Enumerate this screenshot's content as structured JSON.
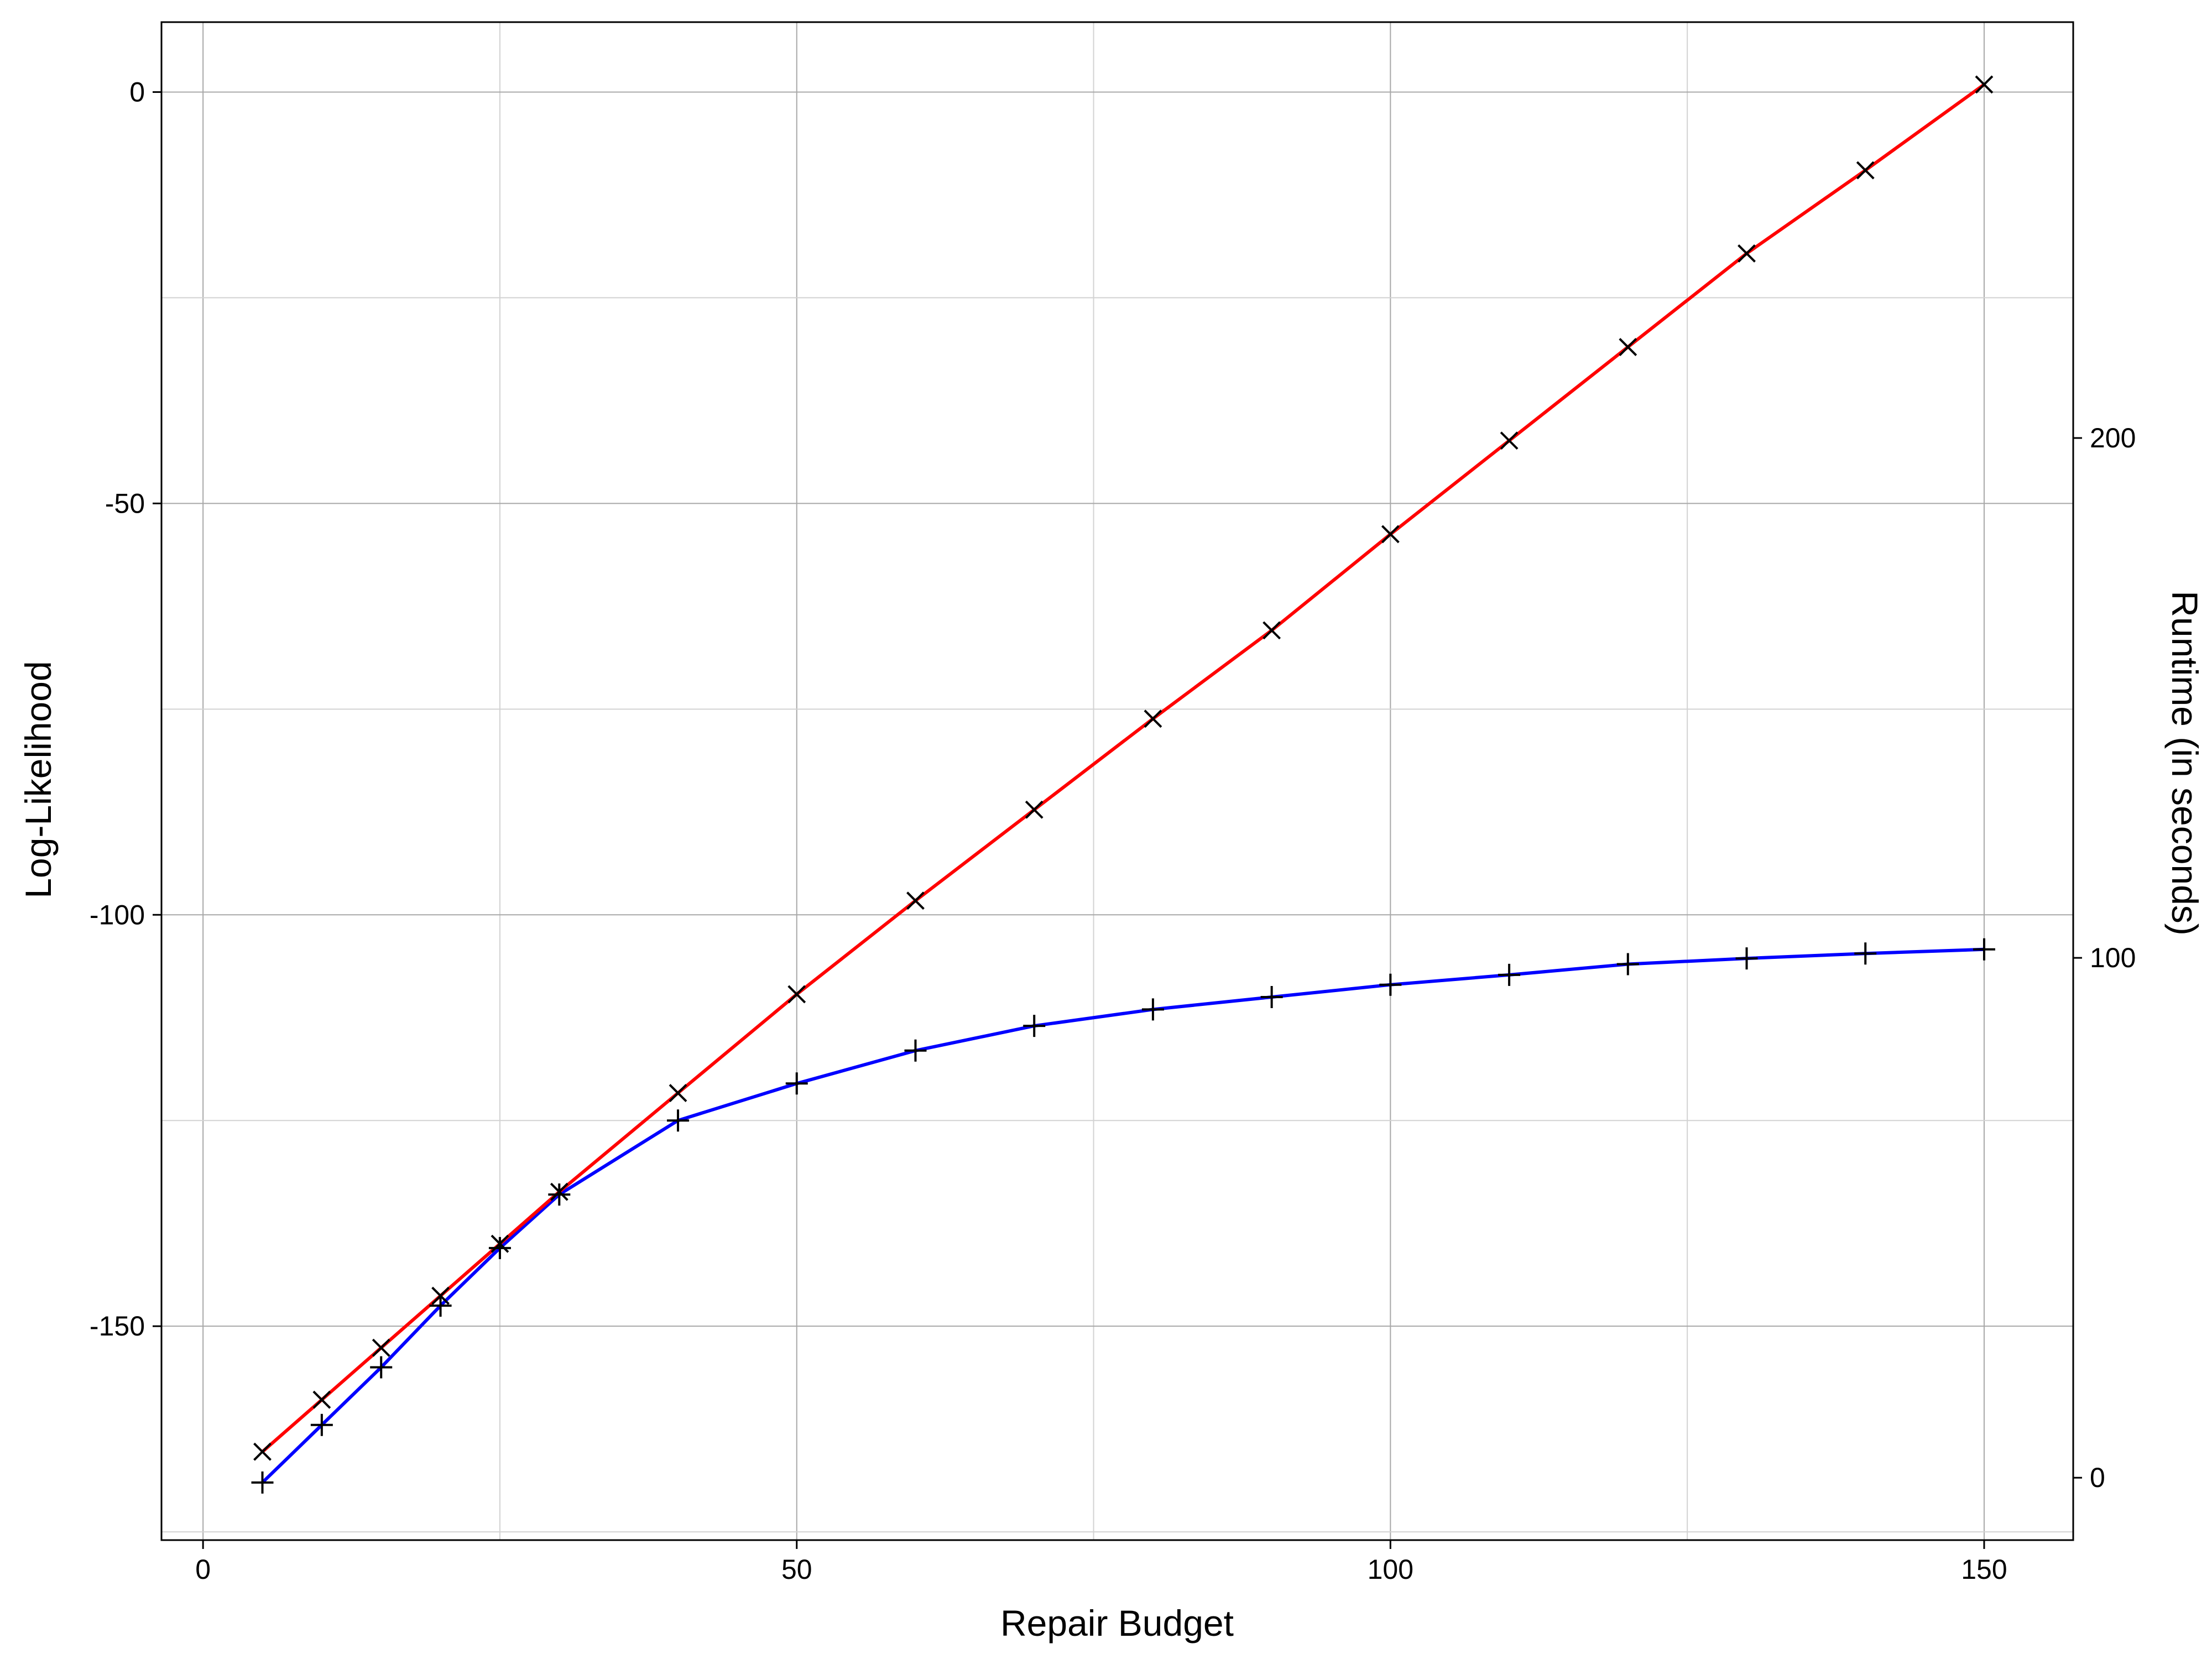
{
  "chart_data": {
    "type": "line",
    "title": "",
    "xlabel": "Repair Budget",
    "ylabel": "Log-Likelihood",
    "y2label": "Runtime (in seconds)",
    "xlim": [
      -3.5,
      157.5
    ],
    "ylim": [
      -176,
      8.5
    ],
    "y2lim": [
      -12,
      280
    ],
    "xticks": [
      0,
      50,
      100,
      150
    ],
    "yticks": [
      0,
      -50,
      -100,
      -150
    ],
    "y2ticks": [
      0,
      100,
      200
    ],
    "grid": true,
    "colors": {
      "loglik": "#0000ff",
      "runtime": "#ff0000",
      "marker": "#000000"
    },
    "series": [
      {
        "axis": "left",
        "marker": "+",
        "x": [
          5,
          10,
          15,
          20,
          25,
          30,
          40,
          50,
          60,
          70,
          80,
          90,
          100,
          110,
          120,
          130,
          140,
          150
        ],
        "values": [
          -169,
          -162,
          -155,
          -147.5,
          -140.5,
          -134,
          -125,
          -120.5,
          -116.5,
          -113.5,
          -111.5,
          -110,
          -108.5,
          -107.3,
          -106,
          -105.3,
          -104.7,
          -104.2
        ]
      },
      {
        "axis": "right",
        "marker": "x",
        "x": [
          5,
          10,
          15,
          20,
          25,
          30,
          40,
          50,
          60,
          70,
          80,
          90,
          100,
          110,
          120,
          130,
          140,
          150
        ],
        "values": [
          5,
          15,
          25,
          35,
          45,
          55,
          74,
          93,
          111,
          128.5,
          146,
          163,
          181.5,
          199.5,
          217.5,
          235.5,
          251.5,
          268
        ]
      }
    ]
  }
}
